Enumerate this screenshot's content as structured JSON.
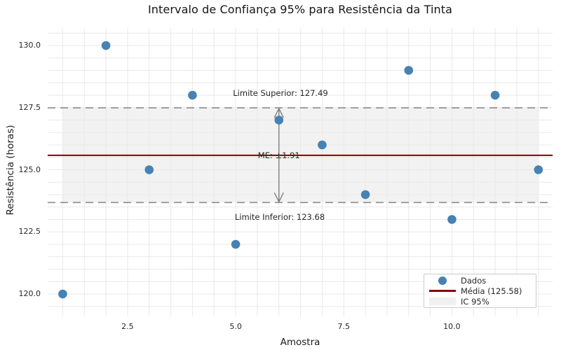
{
  "chart_data": {
    "type": "scatter",
    "title": "Intervalo de Confiança 95% para Resistência da Tinta",
    "xlabel": "Amostra",
    "ylabel": "Resistência (horas)",
    "x": [
      1,
      2,
      3,
      4,
      5,
      6,
      7,
      8,
      9,
      10,
      11,
      12
    ],
    "y": [
      120,
      130,
      125,
      128,
      122,
      127,
      126,
      124,
      129,
      123,
      128,
      125
    ],
    "mean": 125.58,
    "ci_upper": 127.49,
    "ci_lower": 123.68,
    "margin_of_error": 1.91,
    "xlim": [
      0.65,
      12.32
    ],
    "ylim": [
      119.1,
      130.7
    ],
    "grid": true,
    "grid_step": 0.5,
    "xticks": [
      2.5,
      5.0,
      7.5,
      10.0
    ],
    "xtick_labels": [
      "2.5",
      "5.0",
      "7.5",
      "10.0"
    ],
    "yticks": [
      120,
      122.5,
      125,
      127.5,
      130
    ],
    "ytick_labels": [
      "120.0",
      "122.5",
      "125.0",
      "127.5",
      "130.0"
    ],
    "annotations": {
      "upper": "Limite Superior: 127.49",
      "lower": "Limite Inferior: 123.68",
      "me": "ME: ±1.91"
    },
    "legend": {
      "position": "lower right",
      "items": [
        {
          "label": "Dados",
          "type": "marker"
        },
        {
          "label": "Média (125.58)",
          "type": "line"
        },
        {
          "label": "IC 95%",
          "type": "patch"
        }
      ]
    },
    "colors": {
      "points": "#4682b4",
      "mean_line": "#8b0000",
      "ci_band": "#f2f2f2",
      "dashed": "#8c8c8c",
      "arrow": "#7f7f7f",
      "grid": "#e9e9e9",
      "legend_patch": "#f0f0f0",
      "text": "#262626"
    }
  }
}
